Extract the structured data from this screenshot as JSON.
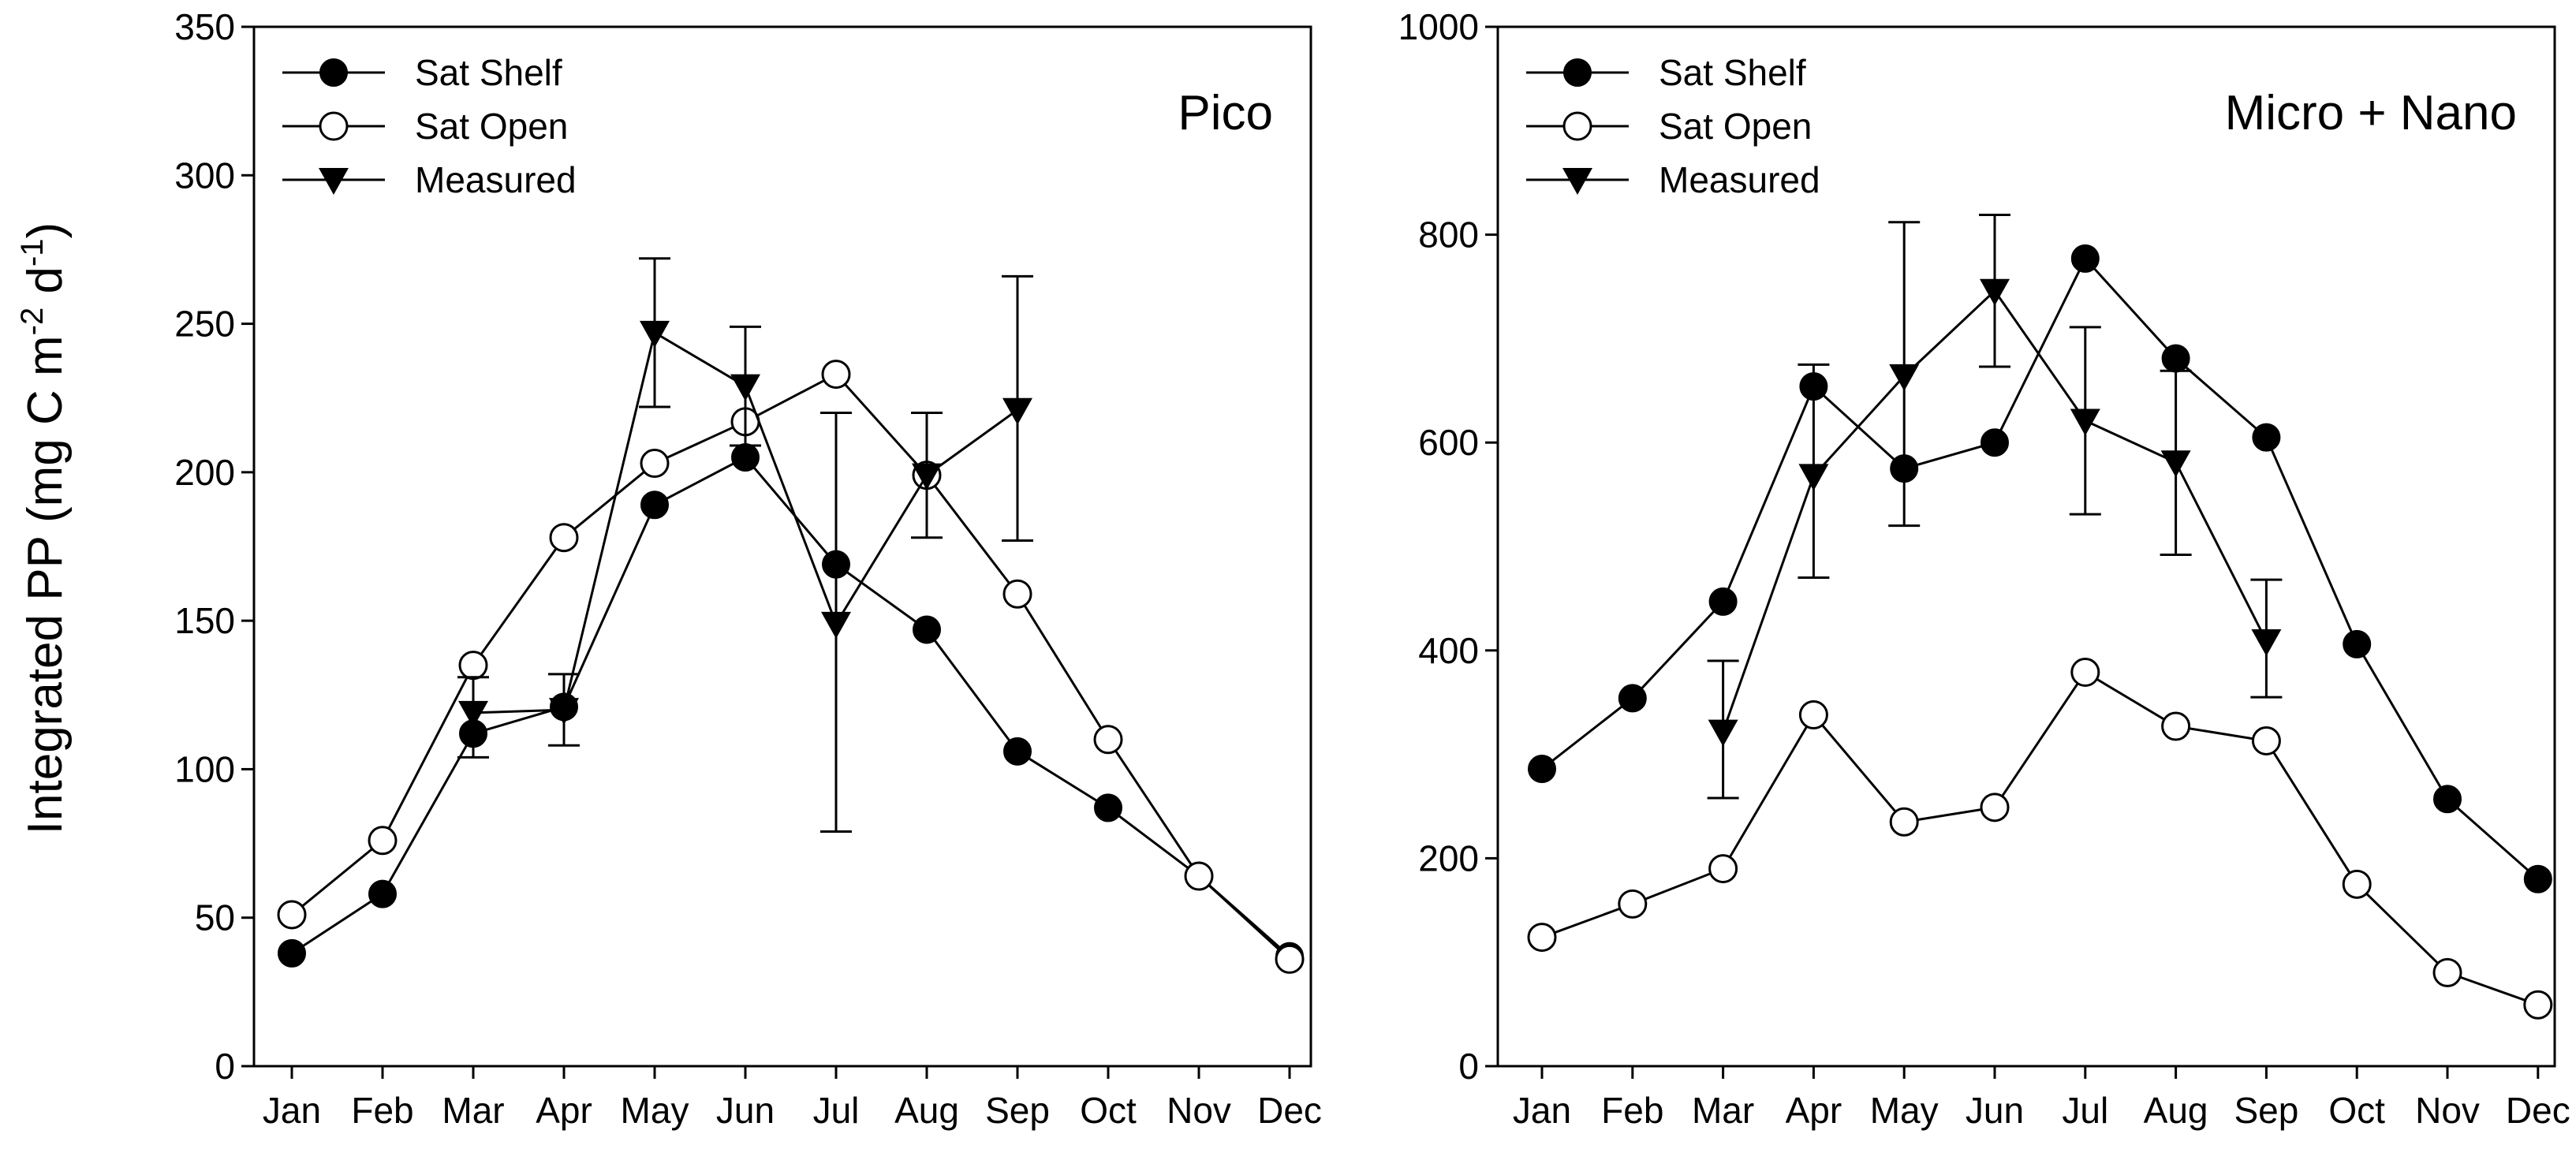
{
  "ylabel": {
    "main": "Integrated PP (mg C m",
    "exp1": "-2",
    "mid": " d",
    "exp2": "-1",
    "close": ")"
  },
  "colors": {
    "ink": "#000000",
    "paper": "#ffffff"
  },
  "chart_data": [
    {
      "type": "line",
      "title": "Pico",
      "xlabel": "",
      "ylabel": "Integrated PP (mg C m-2 d-1)",
      "ylim": [
        0,
        350
      ],
      "yticks": [
        0,
        50,
        100,
        150,
        200,
        250,
        300,
        350
      ],
      "categories": [
        "Jan",
        "Feb",
        "Mar",
        "Apr",
        "May",
        "Jun",
        "Jul",
        "Aug",
        "Sep",
        "Oct",
        "Nov",
        "Dec"
      ],
      "legend_position": "top-left",
      "grid": false,
      "series": [
        {
          "name": "Sat Shelf",
          "marker": "filled-circle",
          "values": [
            38,
            58,
            112,
            121,
            189,
            205,
            169,
            147,
            106,
            87,
            64,
            37
          ]
        },
        {
          "name": "Sat Open",
          "marker": "open-circle",
          "values": [
            51,
            76,
            135,
            178,
            203,
            217,
            233,
            199,
            159,
            110,
            64,
            36
          ]
        },
        {
          "name": "Measured",
          "marker": "filled-triangle-down",
          "values": [
            null,
            null,
            119,
            120,
            247,
            229,
            149,
            199,
            221,
            null,
            null,
            null
          ],
          "error_low": [
            null,
            null,
            104,
            108,
            222,
            209,
            79,
            178,
            177,
            null,
            null,
            null
          ],
          "error_high": [
            null,
            null,
            131,
            132,
            272,
            249,
            220,
            220,
            266,
            null,
            null,
            null
          ]
        }
      ]
    },
    {
      "type": "line",
      "title": "Micro + Nano",
      "xlabel": "",
      "ylabel": "",
      "ylim": [
        0,
        1000
      ],
      "yticks": [
        0,
        200,
        400,
        600,
        800,
        1000
      ],
      "categories": [
        "Jan",
        "Feb",
        "Mar",
        "Apr",
        "May",
        "Jun",
        "Jul",
        "Aug",
        "Sep",
        "Oct",
        "Nov",
        "Dec"
      ],
      "legend_position": "top-left",
      "grid": false,
      "series": [
        {
          "name": "Sat Shelf",
          "marker": "filled-circle",
          "values": [
            286,
            354,
            447,
            654,
            575,
            600,
            777,
            681,
            605,
            406,
            257,
            180
          ]
        },
        {
          "name": "Sat Open",
          "marker": "open-circle",
          "values": [
            124,
            156,
            190,
            338,
            235,
            249,
            379,
            327,
            313,
            175,
            90,
            59
          ]
        },
        {
          "name": "Measured",
          "marker": "filled-triangle-down",
          "values": [
            null,
            null,
            322,
            568,
            664,
            746,
            621,
            581,
            409,
            null,
            null,
            null
          ],
          "error_low": [
            null,
            null,
            258,
            470,
            520,
            673,
            531,
            492,
            355,
            null,
            null,
            null
          ],
          "error_high": [
            null,
            null,
            390,
            675,
            812,
            819,
            711,
            669,
            468,
            null,
            null,
            null
          ]
        }
      ]
    }
  ]
}
